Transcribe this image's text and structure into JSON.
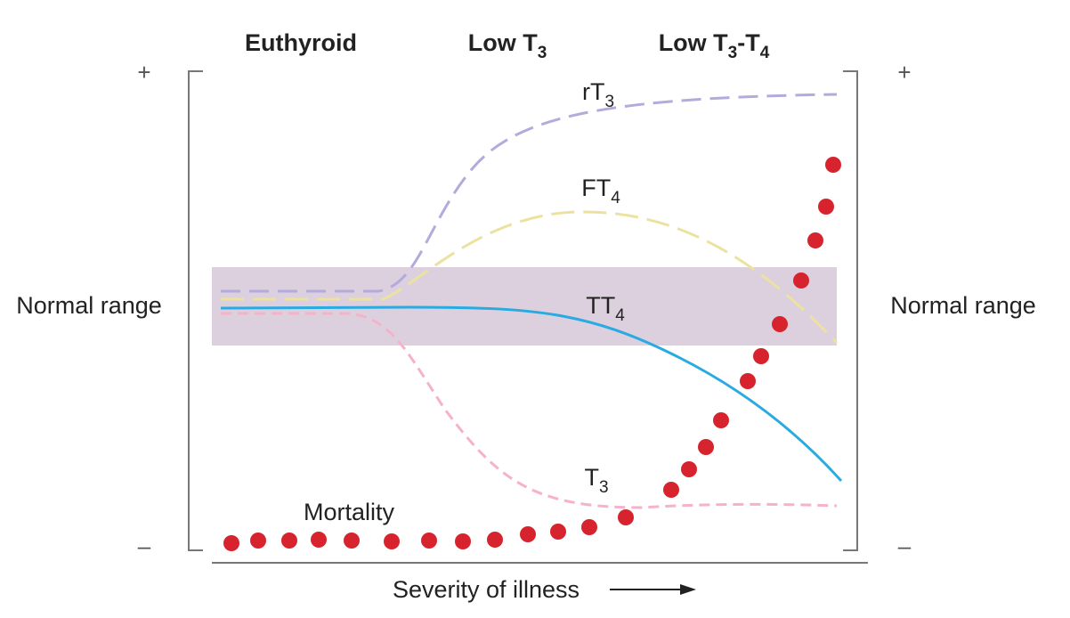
{
  "phases": [
    [
      "Euthyroid"
    ],
    [
      "Low T",
      "3"
    ],
    [
      "Low T",
      "3",
      "-T",
      "4"
    ]
  ],
  "scale": {
    "plus": "+",
    "minus": "–"
  },
  "normal_range": "Normal range",
  "curves": [
    {
      "label": [
        "rT",
        "3"
      ]
    },
    {
      "label": [
        "FT",
        "4"
      ]
    },
    {
      "label": [
        "TT",
        "4"
      ]
    },
    {
      "label": [
        "T",
        "3"
      ]
    }
  ],
  "mortality": "Mortality",
  "x_axis": "Severity of illness"
}
